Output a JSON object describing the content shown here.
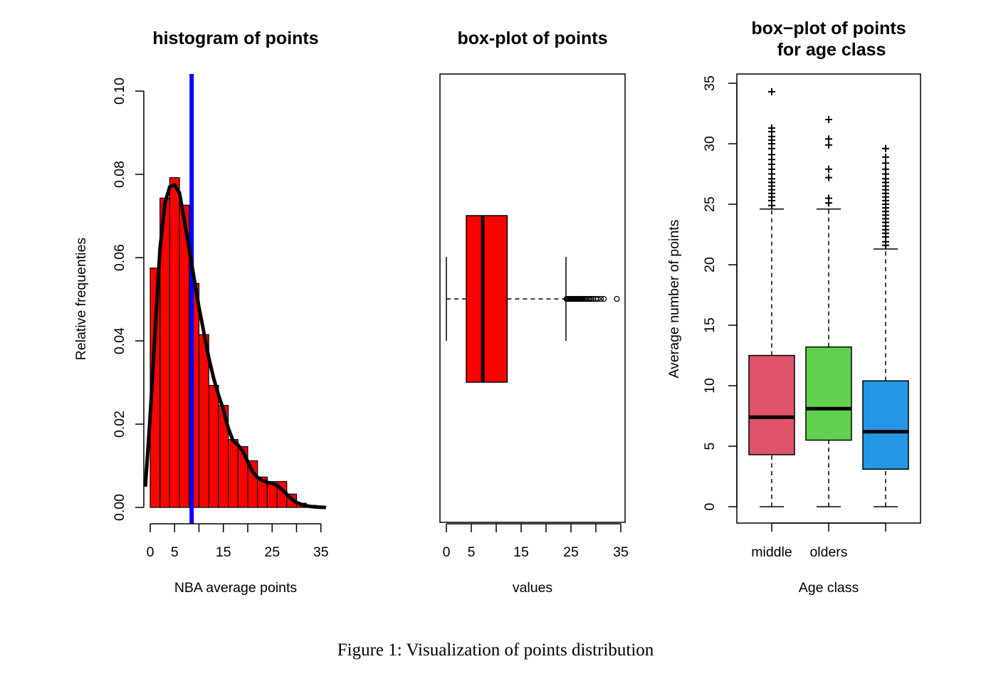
{
  "caption": "Figure 1: Visualization of points distribution",
  "chart_data": [
    {
      "type": "histogram",
      "title": "histogram of points",
      "xlabel": "NBA average points",
      "ylabel": "Relative frequenties",
      "xlim": [
        0,
        36
      ],
      "ylim": [
        0,
        0.1
      ],
      "x_ticks": [
        0,
        5,
        10,
        15,
        20,
        25,
        30,
        35
      ],
      "x_tick_labels": [
        "0",
        "5",
        "",
        "15",
        "",
        "25",
        "",
        "35"
      ],
      "y_ticks": [
        "0.00",
        "0.02",
        "0.04",
        "0.06",
        "0.08",
        "0.10"
      ],
      "bar_color": "#ff0000",
      "bin_width": 2,
      "bins_start": [
        0,
        2,
        4,
        6,
        8,
        10,
        12,
        14,
        16,
        18,
        20,
        22,
        24,
        26,
        28,
        30,
        32,
        34
      ],
      "values": [
        0.0575,
        0.0743,
        0.0792,
        0.0726,
        0.0538,
        0.0415,
        0.0293,
        0.0245,
        0.0163,
        0.0146,
        0.0112,
        0.0073,
        0.0062,
        0.0062,
        0.0032,
        0.001,
        0.0005,
        0.0002
      ],
      "mean_line": {
        "x": 8.5,
        "color": "#0000ff"
      },
      "density_curve": {
        "color": "#000000",
        "x": [
          -1,
          0,
          1,
          2,
          3,
          4,
          5,
          6,
          7,
          8,
          9,
          10,
          11,
          12,
          13,
          14,
          15,
          16,
          17,
          18,
          19,
          20,
          21,
          22,
          23,
          24,
          25,
          26,
          27,
          28,
          29,
          30,
          31,
          32,
          33,
          34,
          35,
          36
        ],
        "y": [
          0.005,
          0.022,
          0.042,
          0.062,
          0.073,
          0.077,
          0.0775,
          0.0755,
          0.069,
          0.062,
          0.055,
          0.048,
          0.042,
          0.036,
          0.031,
          0.027,
          0.0235,
          0.019,
          0.016,
          0.015,
          0.0135,
          0.011,
          0.0085,
          0.0072,
          0.0065,
          0.006,
          0.0058,
          0.0053,
          0.0043,
          0.0032,
          0.002,
          0.0012,
          0.0007,
          0.0004,
          0.0002,
          0.0001,
          5e-05,
          0.0
        ]
      }
    },
    {
      "type": "boxplot",
      "orientation": "horizontal",
      "title": "box-plot of points",
      "xlabel": "values",
      "xlim": [
        -1.5,
        36
      ],
      "x_ticks": [
        0,
        5,
        10,
        15,
        20,
        25,
        30,
        35
      ],
      "x_tick_labels": [
        "0",
        "5",
        "",
        "15",
        "",
        "25",
        "",
        "35"
      ],
      "box": {
        "min": 0,
        "q1": 4,
        "median": 7.3,
        "q3": 12.2,
        "whisker_high": 24,
        "color": "#ff0000"
      },
      "outliers": [
        24.1,
        24.3,
        24.5,
        24.7,
        24.9,
        25.1,
        25.3,
        25.5,
        25.7,
        25.9,
        26.1,
        26.3,
        26.5,
        26.7,
        26.9,
        27.1,
        27.3,
        27.6,
        27.9,
        28.2,
        28.5,
        28.8,
        29.1,
        29.5,
        30.0,
        30.4,
        31.0,
        31.6,
        34.2
      ]
    },
    {
      "type": "boxplot",
      "orientation": "vertical",
      "title": [
        "box−plot of points",
        "for age class"
      ],
      "xlabel": "Age class",
      "ylabel": "Average number of points",
      "ylim": [
        -1.5,
        35.8
      ],
      "y_ticks": [
        0,
        5,
        10,
        15,
        20,
        25,
        30,
        35
      ],
      "categories": [
        "middle",
        "olders",
        ""
      ],
      "boxes": [
        {
          "min": 0,
          "q1": 4.3,
          "median": 7.4,
          "q3": 12.5,
          "whisker_high": 24.6,
          "color": "#df536b",
          "outliers": [
            24.9,
            25.3,
            25.6,
            25.9,
            26.2,
            26.5,
            26.8,
            27.1,
            27.5,
            27.9,
            28.3,
            28.7,
            29.1,
            29.6,
            30.0,
            30.3,
            30.6,
            31.0,
            31.3,
            34.3
          ]
        },
        {
          "min": 0,
          "q1": 5.5,
          "median": 8.1,
          "q3": 13.2,
          "whisker_high": 24.6,
          "color": "#61d04f",
          "outliers": [
            25.1,
            25.5,
            27.2,
            27.9,
            29.9,
            30.4,
            32.0
          ]
        },
        {
          "min": 0,
          "q1": 3.1,
          "median": 6.2,
          "q3": 10.4,
          "whisker_high": 21.3,
          "color": "#2297e6",
          "outliers": [
            21.6,
            21.9,
            22.3,
            22.6,
            22.9,
            23.2,
            23.5,
            23.8,
            24.1,
            24.4,
            24.7,
            25.0,
            25.3,
            25.6,
            25.9,
            26.2,
            26.5,
            26.8,
            27.1,
            27.5,
            27.9,
            28.4,
            28.9,
            29.6
          ]
        }
      ]
    }
  ]
}
